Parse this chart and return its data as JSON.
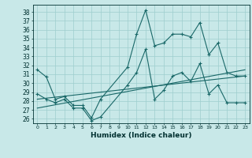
{
  "xlabel": "Humidex (Indice chaleur)",
  "bg_color": "#c8e8e8",
  "line_color": "#196868",
  "grid_color": "#9ecece",
  "xlim": [
    -0.5,
    23.5
  ],
  "ylim": [
    25.5,
    38.8
  ],
  "yticks": [
    26,
    27,
    28,
    29,
    30,
    31,
    32,
    33,
    34,
    35,
    36,
    37,
    38
  ],
  "xticks": [
    0,
    1,
    2,
    3,
    4,
    5,
    6,
    7,
    8,
    9,
    10,
    11,
    12,
    13,
    14,
    15,
    16,
    17,
    18,
    19,
    20,
    21,
    22,
    23
  ],
  "line1_x": [
    0,
    1,
    2,
    3,
    4,
    5,
    6,
    7,
    10,
    11,
    12,
    13,
    14,
    15,
    16,
    17,
    18,
    19,
    20,
    21,
    22,
    23
  ],
  "line1_y": [
    31.5,
    30.7,
    28.2,
    28.5,
    27.5,
    27.5,
    26.1,
    28.2,
    31.8,
    35.5,
    38.2,
    34.2,
    34.5,
    35.5,
    35.5,
    35.2,
    36.8,
    33.2,
    34.5,
    31.2,
    30.8,
    30.8
  ],
  "line2_x": [
    0,
    1,
    2,
    3,
    4,
    5,
    6,
    7,
    10,
    11,
    12,
    13,
    14,
    15,
    16,
    17,
    18,
    19,
    20,
    21,
    22,
    23
  ],
  "line2_y": [
    28.8,
    28.2,
    27.8,
    28.2,
    27.2,
    27.2,
    25.8,
    26.2,
    29.8,
    31.2,
    33.8,
    28.2,
    29.2,
    30.8,
    31.2,
    30.2,
    32.2,
    28.8,
    29.8,
    27.8,
    27.8,
    27.8
  ],
  "line3_x": [
    0,
    23
  ],
  "line3_y": [
    28.2,
    30.8
  ],
  "line4_x": [
    0,
    23
  ],
  "line4_y": [
    27.2,
    31.5
  ]
}
